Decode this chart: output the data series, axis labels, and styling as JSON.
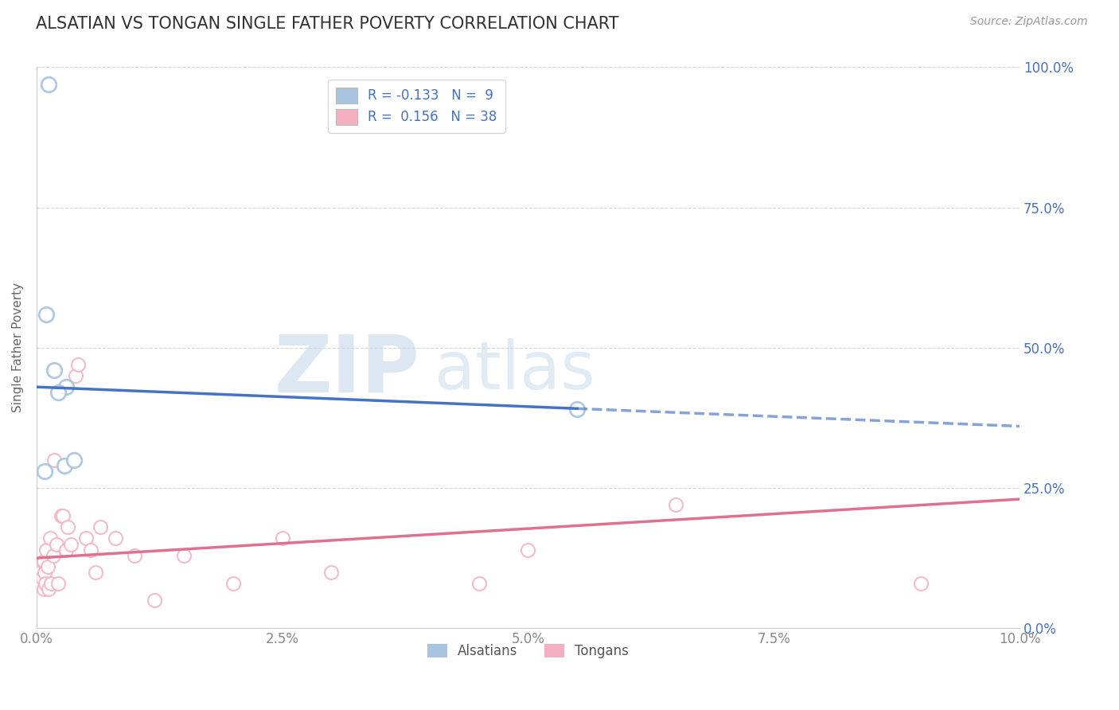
{
  "title": "ALSATIAN VS TONGAN SINGLE FATHER POVERTY CORRELATION CHART",
  "source": "Source: ZipAtlas.com",
  "ylabel": "Single Father Poverty",
  "xlim": [
    0.0,
    10.0
  ],
  "ylim": [
    0.0,
    100.0
  ],
  "xtick_labels": [
    "0.0%",
    "2.5%",
    "5.0%",
    "7.5%",
    "10.0%"
  ],
  "xtick_positions": [
    0.0,
    2.5,
    5.0,
    7.5,
    10.0
  ],
  "ytick_labels_right": [
    "0.0%",
    "25.0%",
    "50.0%",
    "75.0%",
    "100.0%"
  ],
  "ytick_positions": [
    0.0,
    25.0,
    50.0,
    75.0,
    100.0
  ],
  "alsatian_dot_color": "#a8c4e0",
  "tongan_dot_color": "#f4b0c0",
  "trend_blue": "#4472c4",
  "trend_pink": "#e07090",
  "legend_R_alsatian": "-0.133",
  "legend_N_alsatian": "9",
  "legend_R_tongan": "0.156",
  "legend_N_tongan": "38",
  "alsatian_x": [
    0.3,
    0.18,
    0.22,
    0.28,
    0.1,
    0.38,
    0.12,
    5.5,
    0.08
  ],
  "alsatian_y": [
    43.0,
    46.0,
    42.0,
    29.0,
    56.0,
    30.0,
    97.0,
    39.0,
    28.0
  ],
  "tongan_x": [
    0.04,
    0.05,
    0.06,
    0.07,
    0.07,
    0.08,
    0.09,
    0.1,
    0.11,
    0.12,
    0.14,
    0.15,
    0.17,
    0.18,
    0.2,
    0.22,
    0.25,
    0.27,
    0.3,
    0.32,
    0.35,
    0.4,
    0.42,
    0.5,
    0.55,
    0.6,
    0.65,
    0.8,
    1.0,
    1.2,
    1.5,
    2.0,
    2.5,
    3.0,
    4.5,
    5.0,
    6.5,
    9.0
  ],
  "tongan_y": [
    10.0,
    8.0,
    9.0,
    12.0,
    7.0,
    10.0,
    8.0,
    14.0,
    11.0,
    7.0,
    16.0,
    8.0,
    13.0,
    30.0,
    15.0,
    8.0,
    20.0,
    20.0,
    14.0,
    18.0,
    15.0,
    45.0,
    47.0,
    16.0,
    14.0,
    10.0,
    18.0,
    16.0,
    13.0,
    5.0,
    13.0,
    8.0,
    16.0,
    10.0,
    8.0,
    14.0,
    22.0,
    8.0
  ],
  "background_color": "#ffffff",
  "grid_color": "#cccccc",
  "blue_trend_y0": 43.0,
  "blue_trend_y1": 36.0,
  "blue_solid_end_x": 5.5,
  "pink_trend_y0": 12.5,
  "pink_trend_y1": 23.0,
  "watermark_zip_color": "#c5d8ea",
  "watermark_atlas_color": "#c5d8ea"
}
